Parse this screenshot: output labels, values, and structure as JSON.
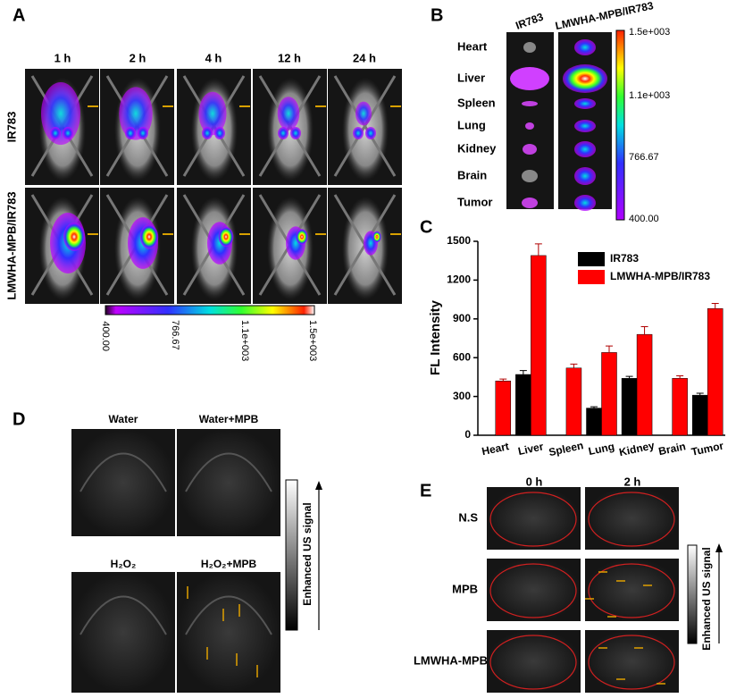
{
  "panel_a": {
    "label": "A",
    "times": [
      "1 h",
      "2 h",
      "4 h",
      "12 h",
      "24 h"
    ],
    "rows": [
      "IR783",
      "LMWHA-MPB/IR783"
    ],
    "colorbar_ticks": [
      "400.00",
      "766.67",
      "1.1e+003",
      "1.5e+003"
    ]
  },
  "panel_b": {
    "label": "B",
    "columns": [
      "IR783",
      "LMWHA-MPB/IR783"
    ],
    "organs": [
      "Heart",
      "Liver",
      "Spleen",
      "Lung",
      "Kidney",
      "Brain",
      "Tumor"
    ],
    "colorbar_ticks": [
      "1.5e+003",
      "1.1e+003",
      "766.67",
      "400.00"
    ]
  },
  "chart_data": {
    "type": "bar",
    "panel_label": "C",
    "ylabel": "FL Intensity",
    "categories": [
      "Heart",
      "Liver",
      "Spleen",
      "Lung",
      "Kidney",
      "Brain",
      "Tumor"
    ],
    "series": [
      {
        "name": "IR783",
        "color": "#000000",
        "values": [
          null,
          470,
          null,
          210,
          440,
          null,
          310
        ],
        "errors": [
          null,
          30,
          null,
          10,
          15,
          null,
          15
        ]
      },
      {
        "name": "LMWHA-MPB/IR783",
        "color": "#ff0000",
        "values": [
          420,
          1390,
          520,
          640,
          780,
          440,
          980
        ],
        "errors": [
          15,
          90,
          30,
          50,
          60,
          20,
          40
        ]
      }
    ],
    "ylim": [
      0,
      1500
    ],
    "yticks": [
      0,
      300,
      600,
      900,
      1200,
      1500
    ],
    "legend": "upper right"
  },
  "panel_d": {
    "label": "D",
    "images": [
      "Water",
      "Water+MPB",
      "H₂O₂",
      "H₂O₂+MPB"
    ],
    "colorbar_label": "Enhanced US signal"
  },
  "panel_e": {
    "label": "E",
    "times": [
      "0 h",
      "2 h"
    ],
    "rows": [
      "N.S",
      "MPB",
      "LMWHA-MPB"
    ],
    "colorbar_label": "Enhanced US signal"
  }
}
